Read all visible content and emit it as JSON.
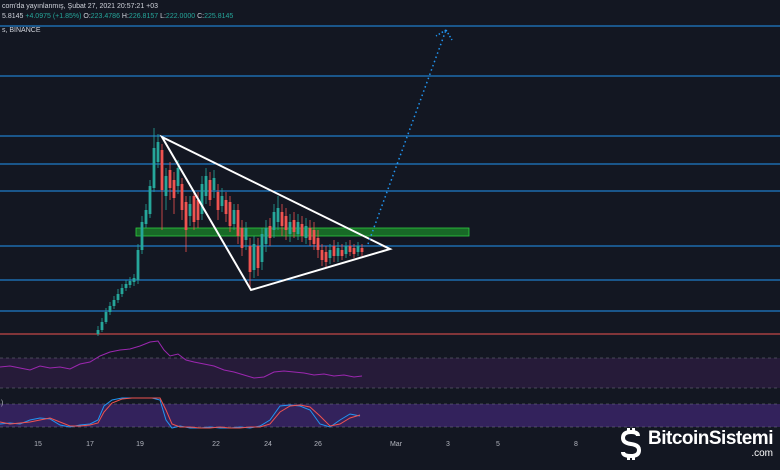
{
  "header": {
    "publisher_text": "com'da yayınlanmış, Şubat 27, 2021 20:57:21 +03",
    "ohlc": {
      "prefix": "5.8145",
      "change": "+4.0975 (+1.85%)",
      "open_label": "O:",
      "open": "223.4786",
      "high_label": "H:",
      "high": "226.8157",
      "low_label": "L:",
      "low": "222.0000",
      "close_label": "C:",
      "close": "225.8145"
    },
    "exchange_text": "s, BINANCE"
  },
  "x_axis": {
    "labels": [
      "15",
      "17",
      "19",
      "22",
      "24",
      "26",
      "Mar",
      "3",
      "5",
      "8"
    ]
  },
  "indicator2_label": ")",
  "watermark": {
    "brand": "BitcoinSistemi",
    "sub": ".com"
  },
  "colors": {
    "background": "#131722",
    "up_candle": "#26a69a",
    "down_candle": "#ef5350",
    "level_line": "#2196f3",
    "red_level": "#ef5350",
    "zone_fill": "#1b8f2a",
    "triangle": "#ffffff",
    "projection": "#2196f3",
    "rsi_line": "#9c27b0",
    "rsi_band": "#2a1c3d",
    "stoch_k": "#2196f3",
    "stoch_d": "#ef5350"
  },
  "icons": {
    "watermark_logo": "bitcoin-s-logo-icon"
  }
}
